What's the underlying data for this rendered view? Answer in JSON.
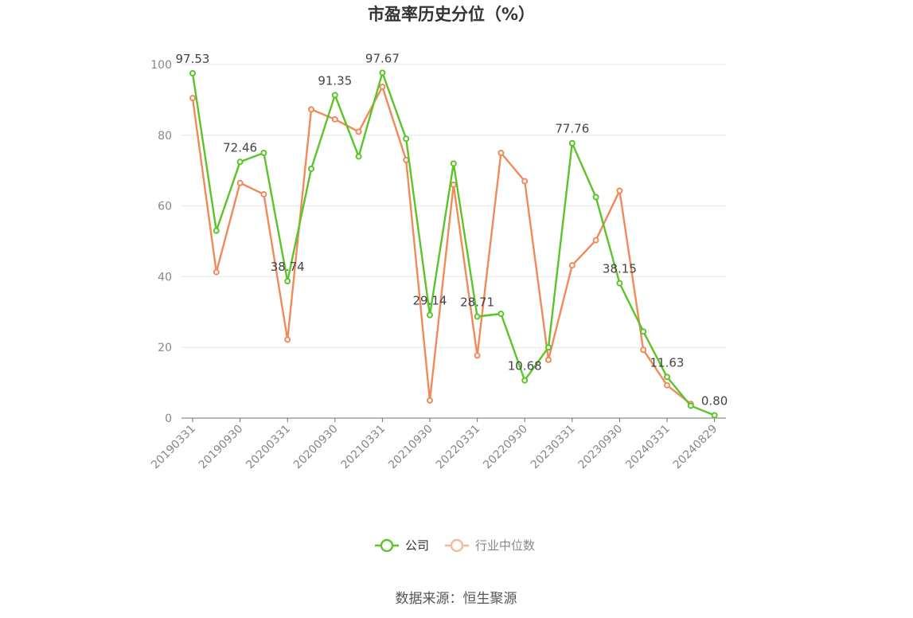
{
  "chart_data": {
    "type": "line",
    "title": "市盈率历史分位（%）",
    "ylim": [
      0,
      100
    ],
    "yticks": [
      0,
      20,
      40,
      60,
      80,
      100
    ],
    "x": [
      "20190331",
      "20190630",
      "20190930",
      "20191231",
      "20200331",
      "20200630",
      "20200930",
      "20201231",
      "20210331",
      "20210630",
      "20210930",
      "20211231",
      "20220331",
      "20220630",
      "20220930",
      "20221231",
      "20230331",
      "20230630",
      "20230930",
      "20231231",
      "20240331",
      "20240630",
      "20240829"
    ],
    "xtick_labels": [
      "20190331",
      "20190930",
      "20200331",
      "20200930",
      "20210331",
      "20210930",
      "20220331",
      "20220930",
      "20230331",
      "20230930",
      "20240331",
      "20240829"
    ],
    "grid": true,
    "legend_position": "bottom",
    "series": [
      {
        "name": "公司",
        "color": "#5bc42a",
        "values": [
          97.53,
          53.0,
          72.46,
          75.0,
          38.74,
          70.5,
          91.35,
          74.0,
          97.67,
          79.0,
          29.14,
          72.0,
          28.71,
          29.5,
          10.68,
          20.0,
          77.76,
          62.5,
          38.15,
          24.5,
          11.63,
          3.5,
          0.8
        ],
        "labels": {
          "0": "97.53",
          "2": "72.46",
          "4": "38.74",
          "6": "91.35",
          "8": "97.67",
          "10": "29.14",
          "12": "28.71",
          "14": "10.68",
          "16": "77.76",
          "18": "38.15",
          "20": "11.63",
          "22": "0.80"
        }
      },
      {
        "name": "行业中位数",
        "color": "#f08a5a",
        "values": [
          90.5,
          41.3,
          66.5,
          63.3,
          22.2,
          87.3,
          84.5,
          81.0,
          93.7,
          73.0,
          5.0,
          66.0,
          17.7,
          75.0,
          67.0,
          16.5,
          43.2,
          50.3,
          64.3,
          19.3,
          9.3,
          4.0,
          null
        ]
      }
    ]
  },
  "source_text": "数据来源：恒生聚源"
}
